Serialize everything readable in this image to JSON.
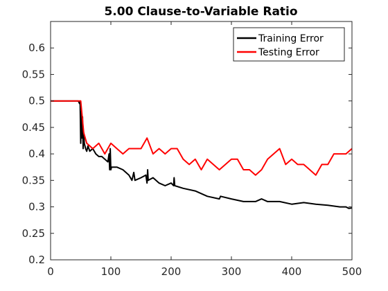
{
  "chart_data": {
    "type": "line",
    "title": "5.00 Clause-to-Variable Ratio",
    "xlabel": "",
    "ylabel": "",
    "xlim": [
      0,
      500
    ],
    "ylim": [
      0.2,
      0.65
    ],
    "xticks": [
      0,
      100,
      200,
      300,
      400,
      500
    ],
    "yticks": [
      0.2,
      0.25,
      0.3,
      0.35,
      0.4,
      0.45,
      0.5,
      0.55,
      0.6
    ],
    "xtick_labels": [
      "0",
      "100",
      "200",
      "300",
      "400",
      "500"
    ],
    "ytick_labels": [
      "0.2",
      "0.25",
      "0.3",
      "0.35",
      "0.4",
      "0.45",
      "0.5",
      "0.55",
      "0.6"
    ],
    "grid": false,
    "legend_position": "top-right",
    "series": [
      {
        "name": "Training Error",
        "color": "#000000",
        "points": [
          [
            0,
            0.5
          ],
          [
            46,
            0.5
          ],
          [
            48,
            0.495
          ],
          [
            49,
            0.5
          ],
          [
            50,
            0.42
          ],
          [
            51,
            0.48
          ],
          [
            52,
            0.43
          ],
          [
            53,
            0.47
          ],
          [
            54,
            0.41
          ],
          [
            55,
            0.44
          ],
          [
            56,
            0.42
          ],
          [
            58,
            0.41
          ],
          [
            60,
            0.405
          ],
          [
            62,
            0.415
          ],
          [
            65,
            0.405
          ],
          [
            70,
            0.41
          ],
          [
            75,
            0.4
          ],
          [
            80,
            0.395
          ],
          [
            85,
            0.395
          ],
          [
            90,
            0.39
          ],
          [
            95,
            0.385
          ],
          [
            97,
            0.4
          ],
          [
            98,
            0.37
          ],
          [
            99,
            0.41
          ],
          [
            100,
            0.37
          ],
          [
            101,
            0.375
          ],
          [
            110,
            0.375
          ],
          [
            120,
            0.37
          ],
          [
            130,
            0.36
          ],
          [
            135,
            0.35
          ],
          [
            138,
            0.365
          ],
          [
            140,
            0.35
          ],
          [
            150,
            0.355
          ],
          [
            158,
            0.36
          ],
          [
            160,
            0.345
          ],
          [
            161,
            0.37
          ],
          [
            162,
            0.35
          ],
          [
            170,
            0.355
          ],
          [
            180,
            0.345
          ],
          [
            190,
            0.34
          ],
          [
            200,
            0.345
          ],
          [
            204,
            0.34
          ],
          [
            205,
            0.355
          ],
          [
            206,
            0.34
          ],
          [
            220,
            0.335
          ],
          [
            240,
            0.33
          ],
          [
            260,
            0.32
          ],
          [
            280,
            0.315
          ],
          [
            282,
            0.32
          ],
          [
            300,
            0.315
          ],
          [
            320,
            0.31
          ],
          [
            340,
            0.31
          ],
          [
            350,
            0.315
          ],
          [
            360,
            0.31
          ],
          [
            380,
            0.31
          ],
          [
            400,
            0.305
          ],
          [
            420,
            0.308
          ],
          [
            440,
            0.305
          ],
          [
            460,
            0.303
          ],
          [
            480,
            0.3
          ],
          [
            490,
            0.3
          ],
          [
            495,
            0.297
          ],
          [
            500,
            0.298
          ]
        ]
      },
      {
        "name": "Testing Error",
        "color": "#ff0000",
        "points": [
          [
            0,
            0.5
          ],
          [
            50,
            0.5
          ],
          [
            55,
            0.44
          ],
          [
            60,
            0.42
          ],
          [
            70,
            0.41
          ],
          [
            80,
            0.42
          ],
          [
            90,
            0.4
          ],
          [
            100,
            0.42
          ],
          [
            110,
            0.41
          ],
          [
            120,
            0.4
          ],
          [
            130,
            0.41
          ],
          [
            140,
            0.41
          ],
          [
            150,
            0.41
          ],
          [
            160,
            0.43
          ],
          [
            170,
            0.4
          ],
          [
            180,
            0.41
          ],
          [
            190,
            0.4
          ],
          [
            200,
            0.41
          ],
          [
            210,
            0.41
          ],
          [
            220,
            0.39
          ],
          [
            230,
            0.38
          ],
          [
            240,
            0.39
          ],
          [
            250,
            0.37
          ],
          [
            260,
            0.39
          ],
          [
            270,
            0.38
          ],
          [
            280,
            0.37
          ],
          [
            290,
            0.38
          ],
          [
            300,
            0.39
          ],
          [
            310,
            0.39
          ],
          [
            320,
            0.37
          ],
          [
            330,
            0.37
          ],
          [
            340,
            0.36
          ],
          [
            350,
            0.37
          ],
          [
            360,
            0.39
          ],
          [
            370,
            0.4
          ],
          [
            380,
            0.41
          ],
          [
            390,
            0.38
          ],
          [
            400,
            0.39
          ],
          [
            410,
            0.38
          ],
          [
            420,
            0.38
          ],
          [
            430,
            0.37
          ],
          [
            440,
            0.36
          ],
          [
            450,
            0.38
          ],
          [
            460,
            0.38
          ],
          [
            470,
            0.4
          ],
          [
            480,
            0.4
          ],
          [
            490,
            0.4
          ],
          [
            500,
            0.41
          ]
        ]
      }
    ]
  }
}
